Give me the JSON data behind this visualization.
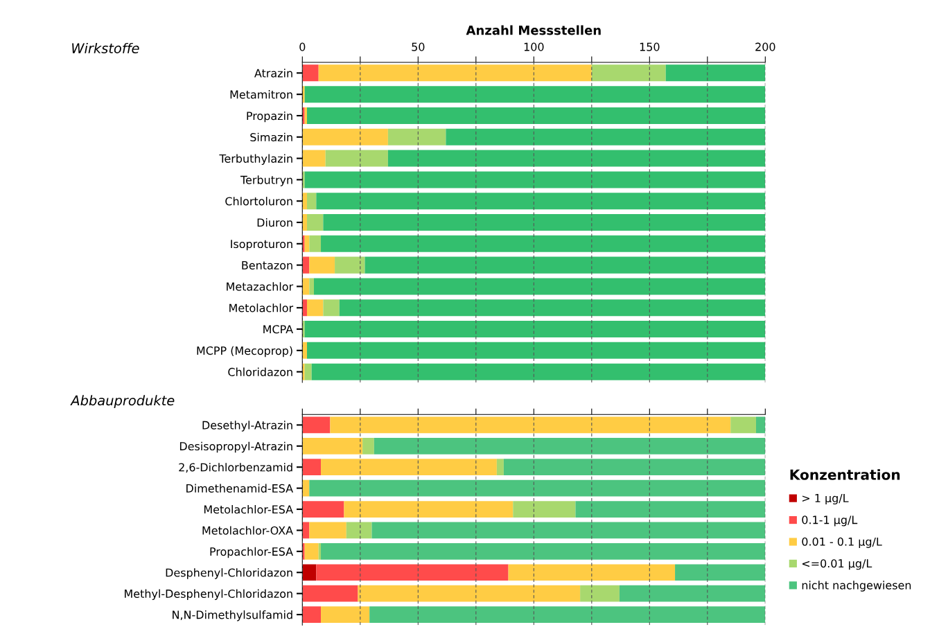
{
  "chart_data": [
    {
      "type": "bar",
      "orientation": "horizontal",
      "stacked": true,
      "title": "Wirkstoffe",
      "x2label": "Anzahl Messstellen",
      "x2lim": [
        0,
        200
      ],
      "x2ticks": [
        0,
        {
          "value": 25,
          "label": null
        },
        50,
        {
          "value": 75,
          "label": null
        },
        100,
        {
          "value": 125,
          "label": null
        },
        150,
        {
          "value": 175,
          "label": null
        },
        200
      ],
      "grid": "x",
      "legend": false,
      "categories": [
        "Atrazin",
        "Metamitron",
        "Propazin",
        "Simazin",
        "Terbuthylazin",
        "Terbutryn",
        "Chlortoluron",
        "Diuron",
        "Isoproturon",
        "Bentazon",
        "Metazachlor",
        "Metolachlor",
        "MCPA",
        "MCPP (Mecoprop)",
        "Chloridazon"
      ],
      "series": [
        {
          "axis": "x2",
          "color": "#ff4b4b",
          "values": [
            7,
            0,
            1,
            0,
            0,
            0,
            0,
            0,
            1,
            3,
            0,
            2,
            0,
            0,
            0
          ]
        },
        {
          "axis": "x2",
          "color": "#ffcc44",
          "values": [
            118,
            1,
            1,
            37,
            10,
            0,
            2,
            2,
            2,
            11,
            3,
            7,
            0,
            2,
            1
          ]
        },
        {
          "axis": "x2",
          "color": "#a8d86e",
          "values": [
            32,
            0,
            0,
            25,
            27,
            1,
            4,
            7,
            5,
            13,
            2,
            7,
            1,
            0,
            3
          ]
        },
        {
          "axis": "x2",
          "color": "#33bf6e",
          "values": [
            43,
            199,
            198,
            138,
            163,
            199,
            194,
            191,
            192,
            173,
            195,
            184,
            199,
            198,
            196
          ]
        }
      ]
    },
    {
      "type": "bar",
      "orientation": "horizontal",
      "stacked": true,
      "title": "Abbauprodukte",
      "xlim": [
        0,
        200
      ],
      "xticks": [
        0,
        {
          "value": 25,
          "label": null
        },
        50,
        {
          "value": 75,
          "label": null
        },
        100,
        {
          "value": 125,
          "label": null
        },
        150,
        {
          "value": 175,
          "label": null
        },
        200
      ],
      "tick_labels": "y",
      "grid": "x",
      "legend": "right",
      "legend_title": "Konzentration",
      "categories": [
        "Desethyl-Atrazin",
        "Desisopropyl-Atrazin",
        "2,6-Dichlorbenzamid",
        "Dimethenamid-ESA",
        "Metolachlor-ESA",
        "Metolachlor-OXA",
        "Propachlor-ESA",
        "Desphenyl-Chloridazon",
        "Methyl-Desphenyl-Chloridazon",
        "N,N-Dimethylsulfamid"
      ],
      "series": [
        {
          "name": "> 1 µg/L",
          "color": "#c00000",
          "values": [
            0,
            0,
            0,
            0,
            0,
            0,
            0,
            6,
            0,
            0
          ]
        },
        {
          "name": "0.1-1 µg/L",
          "color": "#ff4b4b",
          "values": [
            12,
            0,
            8,
            0,
            18,
            3,
            1,
            83,
            24,
            8
          ]
        },
        {
          "name": "0.01 - 0.1 µg/L",
          "color": "#ffcc44",
          "values": [
            173,
            26,
            76,
            3,
            73,
            16,
            6,
            72,
            96,
            21
          ]
        },
        {
          "name": "<=0.01 µg/L",
          "color": "#a8d86e",
          "values": [
            11,
            5,
            3,
            0,
            27,
            11,
            1,
            0,
            17,
            0
          ]
        },
        {
          "name": "nicht nachgewiesen",
          "color": "#4cc47f",
          "values": [
            4,
            169,
            113,
            197,
            82,
            170,
            192,
            39,
            63,
            171
          ]
        }
      ]
    }
  ]
}
